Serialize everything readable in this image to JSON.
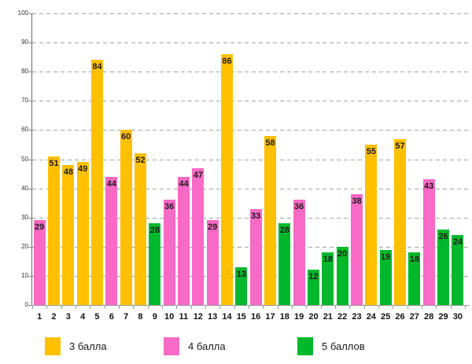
{
  "chart_data": {
    "type": "bar",
    "title": "",
    "xlabel": "",
    "ylabel": "",
    "ylim": [
      0,
      100
    ],
    "yticks": [
      0,
      10,
      20,
      30,
      40,
      50,
      60,
      70,
      80,
      90,
      100
    ],
    "grid": "horizontal-dashed",
    "legend_position": "bottom",
    "value_labels": "inside-end",
    "categories": [
      "1",
      "2",
      "3",
      "4",
      "5",
      "6",
      "7",
      "8",
      "9",
      "10",
      "11",
      "12",
      "13",
      "14",
      "15",
      "16",
      "17",
      "18",
      "19",
      "20",
      "21",
      "22",
      "23",
      "24",
      "25",
      "26",
      "27",
      "28",
      "29",
      "30"
    ],
    "series": [
      {
        "name": "3 балла",
        "color": "#FFC000"
      },
      {
        "name": "4 балла",
        "color": "#F969C6"
      },
      {
        "name": "5 баллов",
        "color": "#00B82B"
      }
    ],
    "points": [
      {
        "category": "1",
        "value": 29,
        "series": "4 балла"
      },
      {
        "category": "2",
        "value": 51,
        "series": "3 балла"
      },
      {
        "category": "3",
        "value": 48,
        "series": "3 балла"
      },
      {
        "category": "4",
        "value": 49,
        "series": "3 балла"
      },
      {
        "category": "5",
        "value": 84,
        "series": "3 балла"
      },
      {
        "category": "6",
        "value": 44,
        "series": "4 балла"
      },
      {
        "category": "7",
        "value": 60,
        "series": "3 балла"
      },
      {
        "category": "8",
        "value": 52,
        "series": "3 балла"
      },
      {
        "category": "9",
        "value": 28,
        "series": "5 баллов"
      },
      {
        "category": "10",
        "value": 36,
        "series": "4 балла"
      },
      {
        "category": "11",
        "value": 44,
        "series": "4 балла"
      },
      {
        "category": "12",
        "value": 47,
        "series": "4 балла"
      },
      {
        "category": "13",
        "value": 29,
        "series": "4 балла"
      },
      {
        "category": "14",
        "value": 86,
        "series": "3 балла"
      },
      {
        "category": "15",
        "value": 13,
        "series": "5 баллов"
      },
      {
        "category": "16",
        "value": 33,
        "series": "4 балла"
      },
      {
        "category": "17",
        "value": 58,
        "series": "3 балла"
      },
      {
        "category": "18",
        "value": 28,
        "series": "5 баллов"
      },
      {
        "category": "19",
        "value": 36,
        "series": "4 балла"
      },
      {
        "category": "20",
        "value": 12,
        "series": "5 баллов"
      },
      {
        "category": "21",
        "value": 18,
        "series": "5 баллов"
      },
      {
        "category": "22",
        "value": 20,
        "series": "5 баллов"
      },
      {
        "category": "23",
        "value": 38,
        "series": "4 балла"
      },
      {
        "category": "24",
        "value": 55,
        "series": "3 балла"
      },
      {
        "category": "25",
        "value": 19,
        "series": "5 баллов"
      },
      {
        "category": "26",
        "value": 57,
        "series": "3 балла"
      },
      {
        "category": "27",
        "value": 18,
        "series": "5 баллов"
      },
      {
        "category": "28",
        "value": 43,
        "series": "4 балла"
      },
      {
        "category": "29",
        "value": 26,
        "series": "5 баллов"
      },
      {
        "category": "30",
        "value": 24,
        "series": "5 баллов"
      }
    ]
  },
  "legend": {
    "items": [
      {
        "label": "3 балла",
        "color": "#FFC000"
      },
      {
        "label": "4 балла",
        "color": "#F969C6"
      },
      {
        "label": "5 баллов",
        "color": "#00B82B"
      }
    ]
  }
}
